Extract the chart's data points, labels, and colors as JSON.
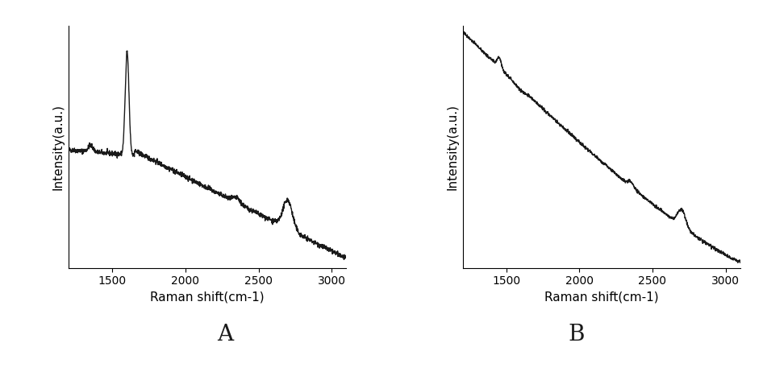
{
  "xlabel": "Raman shift(cm-1)",
  "ylabel": "Intensity(a.u.)",
  "xlim": [
    1200,
    3100
  ],
  "xticks": [
    1500,
    2000,
    2500,
    3000
  ],
  "line_color": "#1a1a1a",
  "line_width": 1.0,
  "label_A": "A",
  "label_B": "B",
  "background_color": "#ffffff",
  "fontsize_label": 11,
  "fontsize_ab": 20
}
